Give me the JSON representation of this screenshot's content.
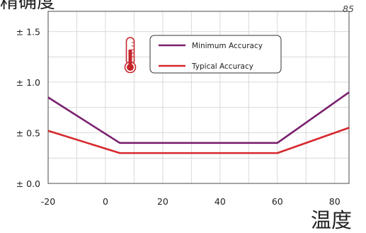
{
  "chart_data": {
    "type": "line",
    "ylabel": "精确度",
    "xlabel": "温度",
    "x_end_label": "85",
    "xlim": [
      -20,
      85
    ],
    "ylim": [
      0,
      1.7
    ],
    "x_ticks": [
      -20,
      0,
      20,
      40,
      60,
      80
    ],
    "x_tick_labels": [
      "-20",
      "0",
      "20",
      "40",
      "60",
      "80"
    ],
    "y_ticks": [
      0,
      0.5,
      1.0,
      1.5
    ],
    "y_tick_labels": [
      "± 0.0",
      "± 0.5",
      "± 1.0",
      "± 1.5"
    ],
    "grid": true,
    "grid_x_step": 10,
    "grid_y_step": 0.25,
    "legend": "top-center",
    "icon": "thermometer-icon",
    "series": [
      {
        "name": "Minimum Accuracy",
        "color": "#7a1f6e",
        "x": [
          -20,
          5,
          60,
          85
        ],
        "y": [
          0.85,
          0.4,
          0.4,
          0.9
        ]
      },
      {
        "name": "Typical Accuracy",
        "color": "#d6282d",
        "x": [
          -20,
          5,
          60,
          85
        ],
        "y": [
          0.52,
          0.3,
          0.3,
          0.55
        ]
      }
    ]
  }
}
